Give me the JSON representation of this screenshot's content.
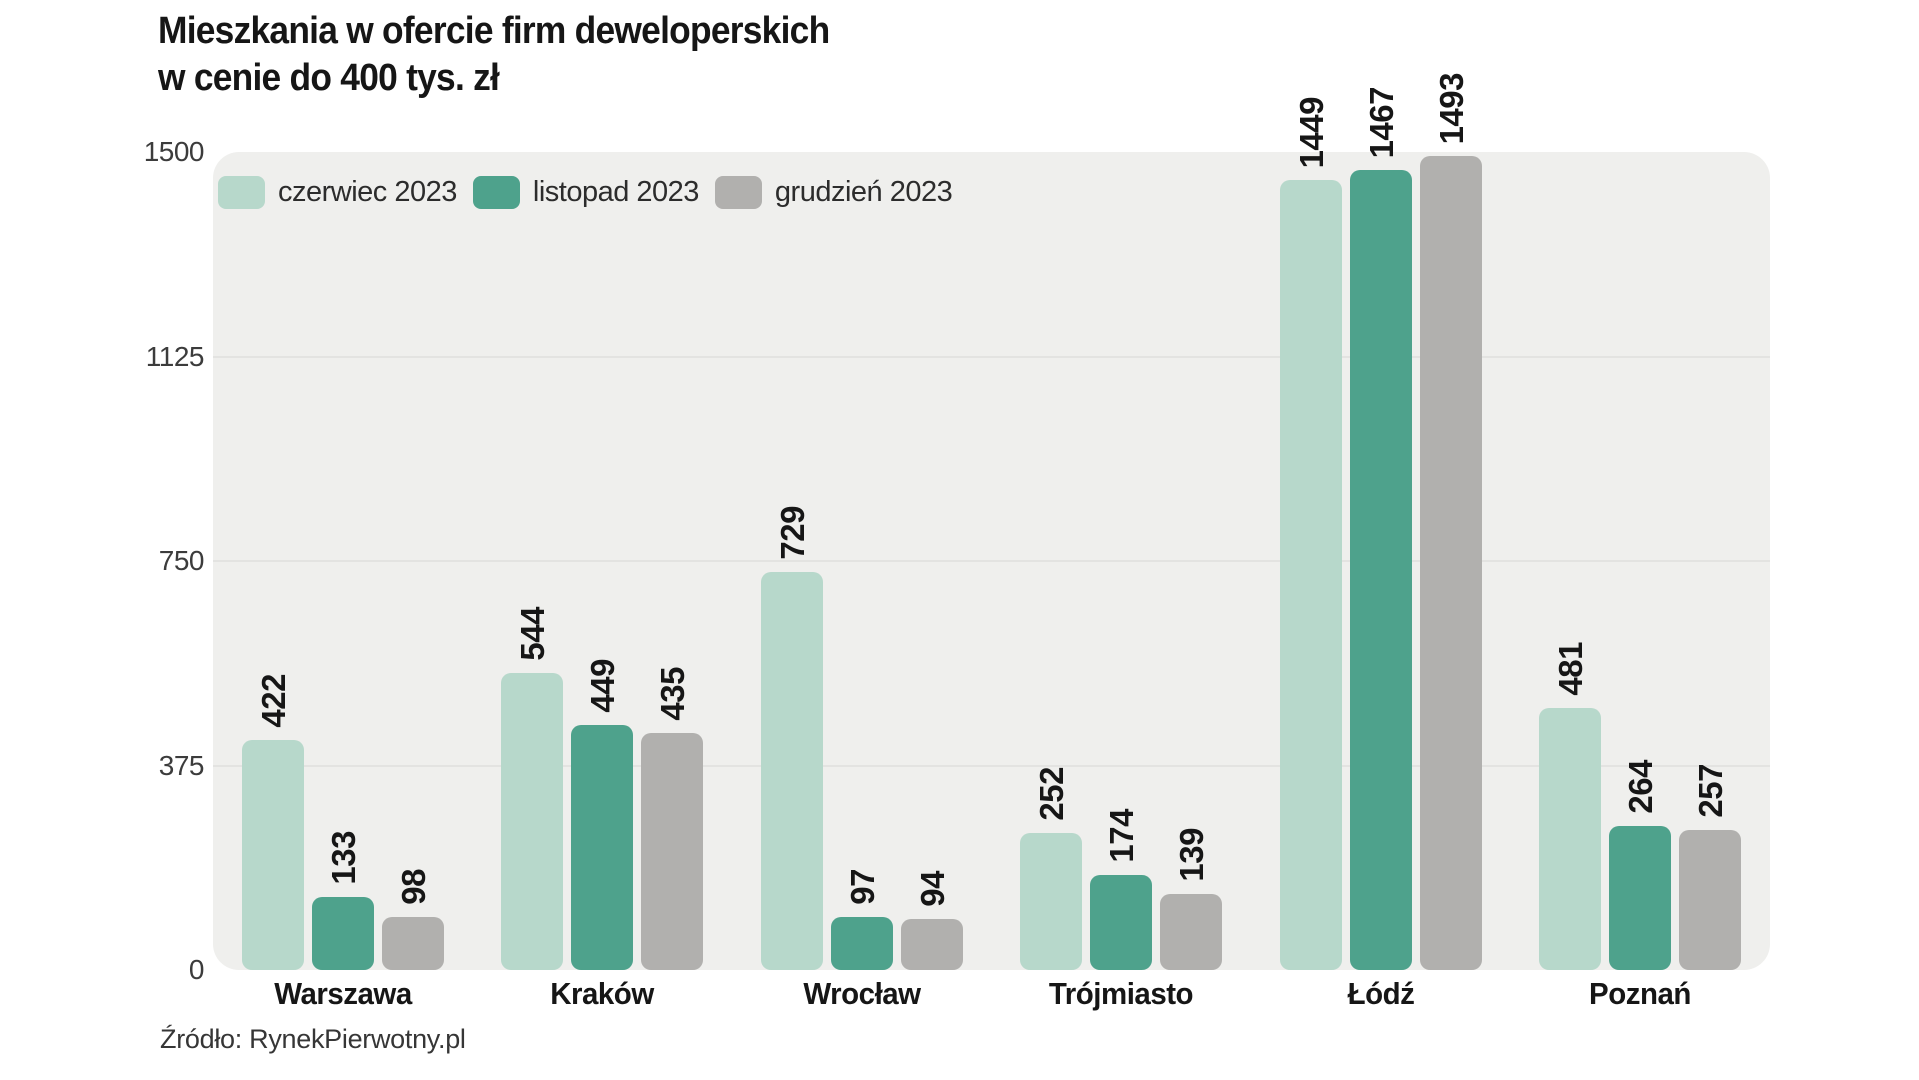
{
  "chart_data": {
    "type": "bar",
    "title_line1": "Mieszkania w ofercie firm deweloperskich",
    "title_line2": "w cenie do 400 tys. zł",
    "categories": [
      "Warszawa",
      "Kraków",
      "Wrocław",
      "Trójmiasto",
      "Łódź",
      "Poznań"
    ],
    "series": [
      {
        "name": "czerwiec 2023",
        "color": "#b7d8cb",
        "values": [
          422,
          544,
          729,
          252,
          1449,
          481
        ]
      },
      {
        "name": "listopad 2023",
        "color": "#4ea28c",
        "values": [
          133,
          449,
          97,
          174,
          1467,
          264
        ]
      },
      {
        "name": "grudzień 2023",
        "color": "#b1b0ae",
        "values": [
          98,
          435,
          94,
          139,
          1493,
          257
        ]
      }
    ],
    "ylim": [
      0,
      1500
    ],
    "yticks": [
      0,
      375,
      750,
      1125,
      1500
    ],
    "gridline_ticks": [
      375,
      750,
      1125
    ],
    "grid": true,
    "legend_position": "top-left-inside",
    "bar_value_labels": "rotated-vertical",
    "source": "Źródło: RynekPierwotny.pl"
  },
  "colors": {
    "plot_background": "#efefed",
    "gridline": "#e3e3e1",
    "title_text": "#161616",
    "tick_text": "#3c3c3c",
    "legend_text": "#2c2c2c",
    "value_label_text": "#161616",
    "source_text": "#363636"
  }
}
